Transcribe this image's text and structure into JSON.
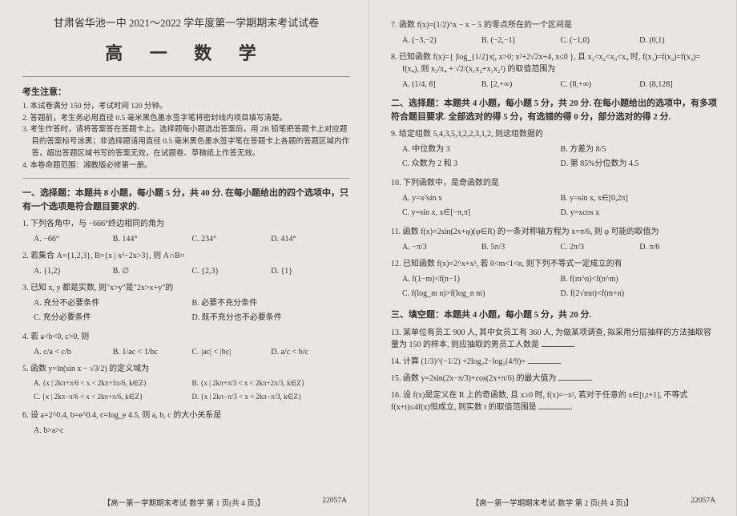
{
  "header": {
    "title": "甘肃省华池一中 2021～2022 学年度第一学期期末考试试卷",
    "subject": "高 一 数 学"
  },
  "notice": {
    "title": "考生注意：",
    "items": [
      "1. 本试卷满分 150 分，考试时间 120 分钟。",
      "2. 答题前，考生务必用直径 0.5 毫米黑色墨水签字笔将密封线内项目填写清楚。",
      "3. 考生作答时，请将答案答在答题卡上。选择题每小题选出答案后，用 2B 铅笔把答题卡上对应题目的答案标号涂黑；非选择题请用直径 0.5 毫米黑色墨水签字笔在答题卡上各题的答题区域内作答，超出答题区域书写的答案无效，在试题卷、草稿纸上作答无效。",
      "4. 本卷命题范围：湘教版必修第一册。"
    ]
  },
  "section1": {
    "title": "一、选择题：本题共 8 小题，每小题 5 分，共 40 分. 在每小题给出的四个选项中，只有一个选项是符合题目要求的.",
    "questions": [
      {
        "stem": "1. 下列各角中，与 −666°终边相同的角为",
        "opts": [
          "A. −66°",
          "B. 144°",
          "C. 234°",
          "D. 414°"
        ]
      },
      {
        "stem": "2. 若集合 A={1,2,3}, B={x | x²−2x>3}, 则 A∩B=",
        "opts": [
          "A. {1,2}",
          "B. ∅",
          "C. {2,3}",
          "D. {1}"
        ]
      },
      {
        "stem": "3. 已知 x, y 都是实数, 则\"x>y\"是\"2x>x+y\"的",
        "opts2": [
          [
            "A. 充分不必要条件",
            "B. 必要不充分条件"
          ],
          [
            "C. 充分必要条件",
            "D. 既不充分也不必要条件"
          ]
        ]
      },
      {
        "stem": "4. 若 a<b<0, c>0, 则",
        "opts": [
          "A. c/a < c/b",
          "B. 1/ac < 1/bc",
          "C. |ac| < |bc|",
          "D. a/c < b/c"
        ]
      },
      {
        "stem": "5. 函数 y=ln(sin x − √3/2) 的定义域为",
        "opts2": [
          [
            "A. {x | 2kπ+π/6 < x < 2kπ+5π/6, k∈Z}",
            "B. {x | 2kπ+π/3 < x < 2kπ+2π/3, k∈Z}"
          ],
          [
            "C. {x | 2kπ−π/6 < x < 2kπ+π/6, k∈Z}",
            "D. {x | 2kπ−π/3 < x < 2kπ−π/3, k∈Z}"
          ]
        ]
      },
      {
        "stem": "6. 设 a=2^0.4, b=e^0.4, c=log_e 4.5, 则 a, b, c 的大小关系是",
        "opts": [
          "A. b>a>c",
          "",
          "",
          ""
        ]
      }
    ]
  },
  "page2": {
    "q7": {
      "stem": "7. 函数 f(x)=(1/2)^x − x − 5 的零点所在的一个区间是",
      "opts": [
        "A. (−3,−2)",
        "B. (−2,−1)",
        "C. (−1,0)",
        "D. (0,1)"
      ]
    },
    "q8": {
      "stem": "8. 已知函数 f(x)={ |log_{1/2}x|, x>0;  x²+2√2x+4, x≤0 }, 且 x₁<x₂<x₃<x₄ 时, f(x₁)=f(x₂)=f(x₃)=",
      "stem2": "f(x₄), 则 x₃/x₄ + √2/(x₁x₂+x₁x₂²) 的取值范围为",
      "opts": [
        "A. (1/4, 8]",
        "B. [2,+∞)",
        "C. (8,+∞)",
        "D. (8,128]"
      ]
    },
    "section2title": "二、选择题：本题共 4 小题，每小题 5 分，共 20 分. 在每小题给出的选项中，有多项符合题目要求. 全部选对的得 5 分，有选错的得 0 分，部分选对的得 2 分.",
    "q9": {
      "stem": "9. 给定组数 5,4,3,5,3,2,2,3,1,2, 则这组数据的",
      "opts2": [
        [
          "A. 中位数为 3",
          "B. 方差为 8/5"
        ],
        [
          "C. 众数为 2 和 3",
          "D. 第 85%分位数为 4.5"
        ]
      ]
    },
    "q10": {
      "stem": "10. 下列函数中，是奇函数的是",
      "opts2": [
        [
          "A. y=x²sin x",
          "B. y=sin x, x∈[0,2π]"
        ],
        [
          "C. y=sin x, x∈[−π,π]",
          "D. y=xcos x"
        ]
      ]
    },
    "q11": {
      "stem": "11. 函数 f(x)=2sin(2x+φ)(φ∈R) 的一条对称轴方程为 x=π/6, 则 φ 可能的取值为",
      "opts": [
        "A. −π/3",
        "B. 5π/3",
        "C. 2π/3",
        "D. π/6"
      ]
    },
    "q12": {
      "stem": "12. 已知函数 f(x)=2^x+x³, 若 0<m<1<n, 则下列不等式一定成立的有",
      "opts2": [
        [
          "A. f(1−m)<f(n−1)",
          "B. f(m^n)<f(n^m)"
        ],
        [
          "C. f(log_m n)>f(log_n m)",
          "D. f(2√mn)<f(m+n)"
        ]
      ]
    },
    "section3title": "三、填空题：本题共 4 小题，每小题 5 分，共 20 分.",
    "q13": "13. 某单位有员工 900 人, 其中女员工有 360 人, 为做某项调查, 拟采用分层抽样的方法抽取容量为 150 的样本, 则应抽取的男员工人数是",
    "q14": "14. 计算 (1/3)^(−1/2) +2log₂2−log₂(4/9)=",
    "q15": "15. 函数 y=2sin(2x−π/3)+cos(2x+π/6) 的最大值为",
    "q16": "16. 设 f(x)是定义在 R 上的奇函数, 且 x≥0 时, f(x)=−x², 若对于任意的 x∈[t,t+1], 不等式 f(x+t)≤4f(x)恒成立, 则实数 t 的取值范围是"
  },
  "footer": {
    "p1": "【高一第一学期期末考试·数学  第 1 页(共 4 页)】",
    "p2": "【高一第一学期期末考试·数学  第 2 页(共 4 页)】",
    "code": "22057A"
  }
}
